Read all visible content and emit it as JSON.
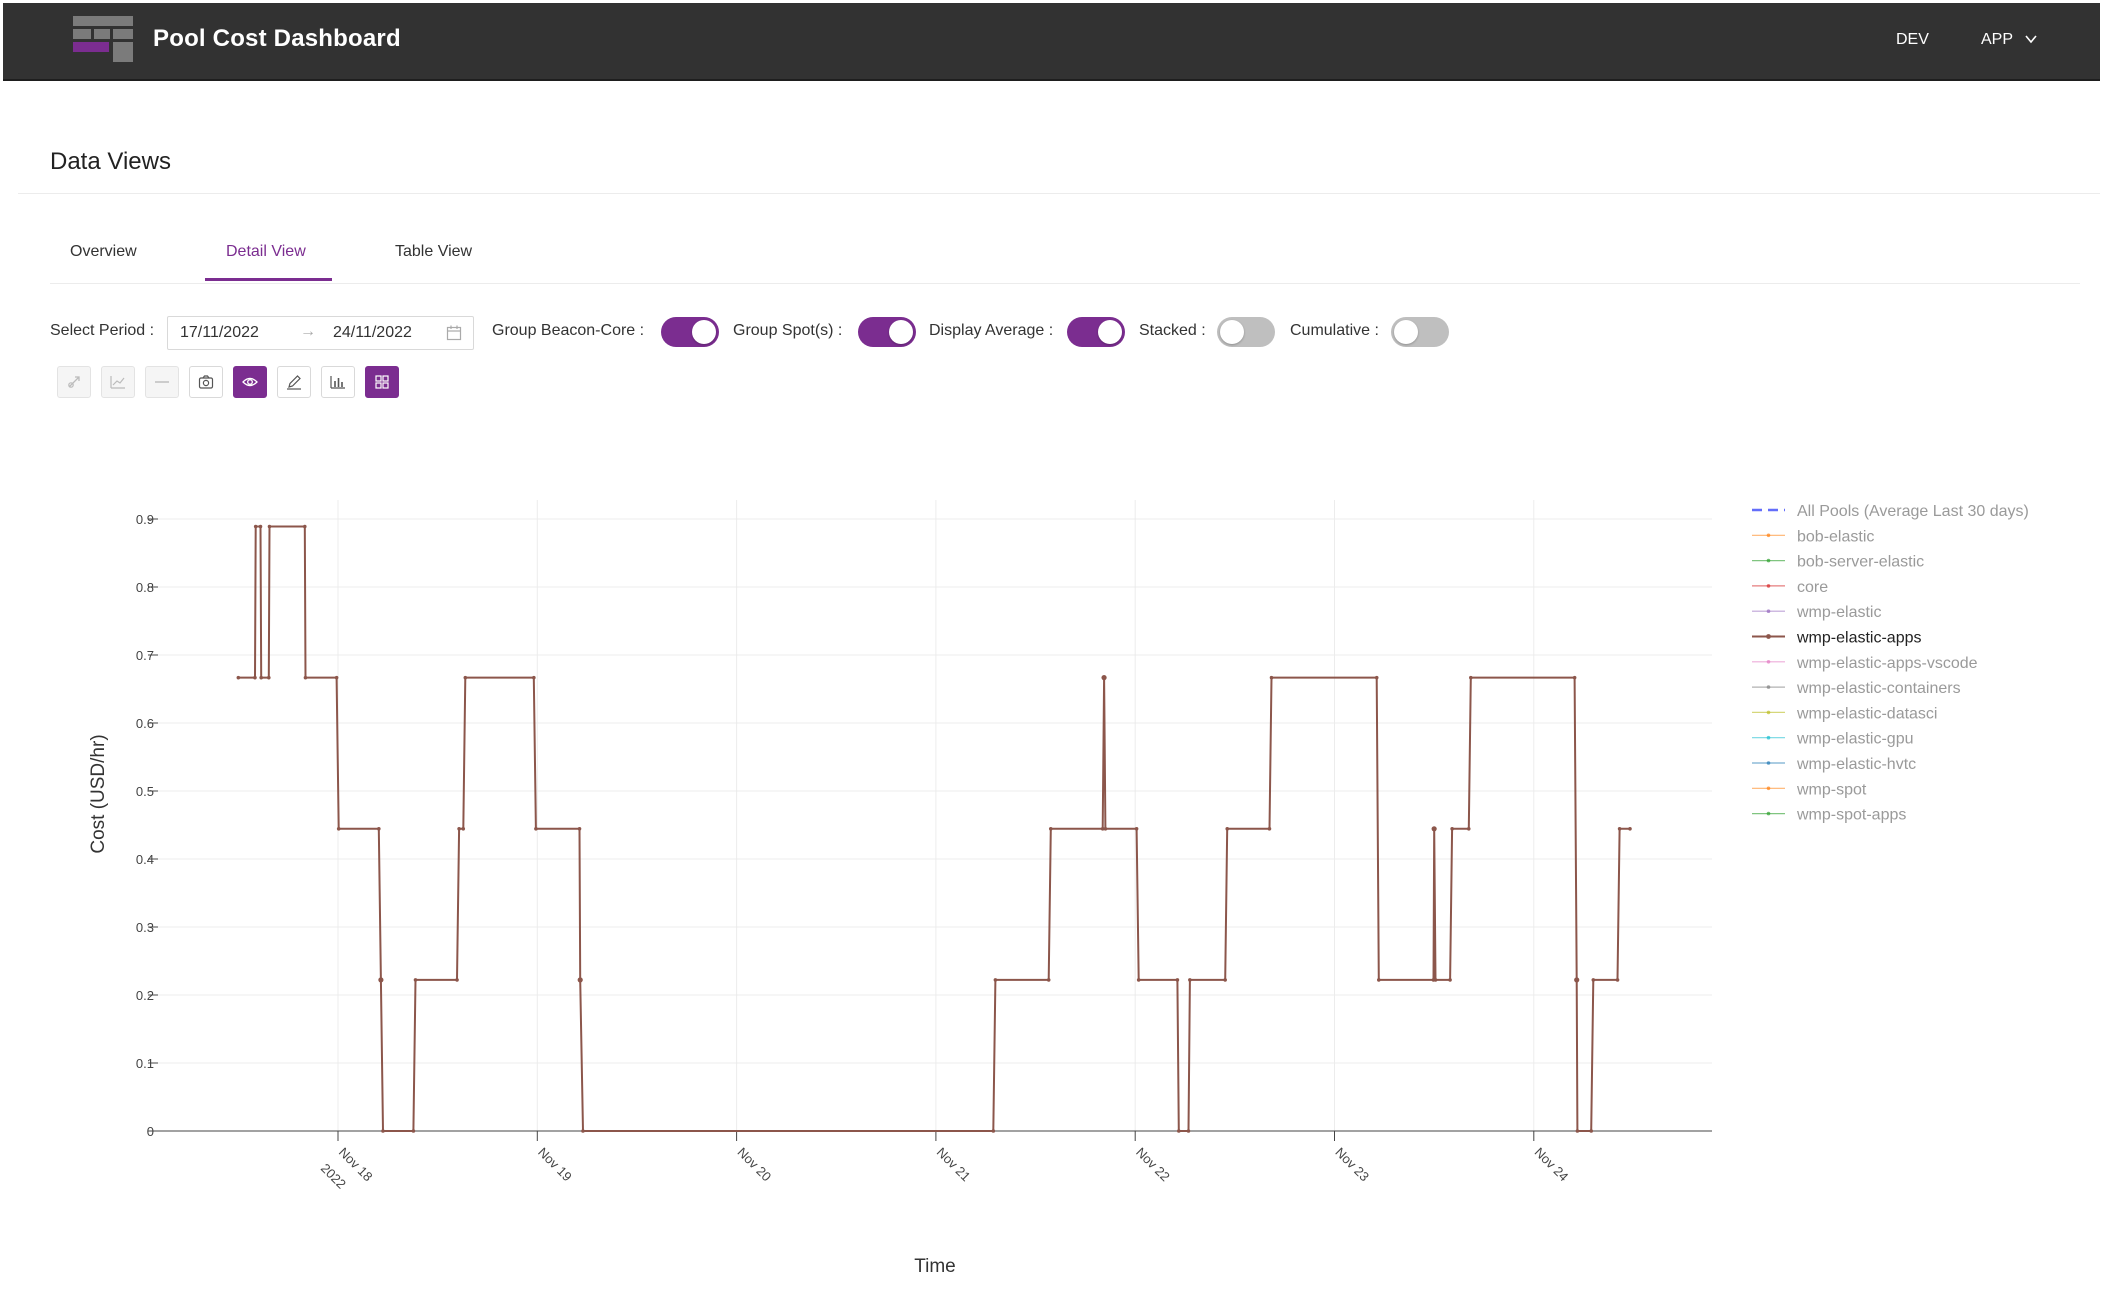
{
  "header": {
    "title": "Pool Cost Dashboard",
    "nav": [
      "DEV",
      "APP"
    ],
    "logo_colors": [
      "#7b7b7b",
      "#7b2d90"
    ]
  },
  "page": {
    "section_title": "Data Views",
    "tabs": [
      {
        "label": "Overview",
        "active": false
      },
      {
        "label": "Detail View",
        "active": true
      },
      {
        "label": "Table View",
        "active": false
      }
    ]
  },
  "controls": {
    "period_label": "Select Period",
    "date_start": "17/11/2022",
    "date_end": "24/11/2022",
    "toggles": [
      {
        "label": "Group Beacon-Core",
        "on": true
      },
      {
        "label": "Group Spot(s)",
        "on": true
      },
      {
        "label": "Display Average",
        "on": true
      },
      {
        "label": "Stacked",
        "on": false
      },
      {
        "label": "Cumulative",
        "on": false
      }
    ],
    "tools": [
      {
        "icon": "pan-icon",
        "state": "disabled"
      },
      {
        "icon": "line-chart-icon",
        "state": "disabled"
      },
      {
        "icon": "dash-line-icon",
        "state": "disabled"
      },
      {
        "icon": "camera-icon",
        "state": "normal"
      },
      {
        "icon": "eye-icon",
        "state": "active"
      },
      {
        "icon": "pencil-icon",
        "state": "normal"
      },
      {
        "icon": "bar-chart-icon",
        "state": "normal"
      },
      {
        "icon": "grid-icon",
        "state": "active"
      }
    ]
  },
  "colors": {
    "accent": "#7b2d90",
    "header_bg": "#323232",
    "series_line": "#8c564b"
  },
  "chart_data": {
    "type": "line",
    "ylabel": "Cost (USD/hr)",
    "xlabel": "Time",
    "ylim": [
      0,
      0.9
    ],
    "y_ticks": [
      {
        "v": 0,
        "label": "0"
      },
      {
        "v": 0.1,
        "label": "0.1"
      },
      {
        "v": 0.2,
        "label": "0.2"
      },
      {
        "v": 0.3,
        "label": "0.3"
      },
      {
        "v": 0.4,
        "label": "0.4"
      },
      {
        "v": 0.5,
        "label": "0.5"
      },
      {
        "v": 0.6,
        "label": "0.6"
      },
      {
        "v": 0.7,
        "label": "0.7"
      },
      {
        "v": 0.8,
        "label": "0.8"
      },
      {
        "v": 0.9,
        "label": "0.9"
      }
    ],
    "x_ticks": [
      {
        "v": "2022-11-18",
        "label": "Nov 18",
        "sub": "2022"
      },
      {
        "v": "2022-11-19",
        "label": "Nov 19",
        "sub": ""
      },
      {
        "v": "2022-11-20",
        "label": "Nov 20",
        "sub": ""
      },
      {
        "v": "2022-11-21",
        "label": "Nov 21",
        "sub": ""
      },
      {
        "v": "2022-11-22",
        "label": "Nov 22",
        "sub": ""
      },
      {
        "v": "2022-11-23",
        "label": "Nov 23",
        "sub": ""
      },
      {
        "v": "2022-11-24",
        "label": "Nov 24",
        "sub": ""
      }
    ],
    "grid": true,
    "legend_position": "right",
    "legend": [
      {
        "name": "All Pools (Average Last 30 days)",
        "color": "#636efa",
        "dash": true,
        "highlight": false
      },
      {
        "name": "bob-elastic",
        "color": "#ff7f0e",
        "dash": false,
        "highlight": false
      },
      {
        "name": "bob-server-elastic",
        "color": "#2ca02c",
        "dash": false,
        "highlight": false
      },
      {
        "name": "core",
        "color": "#d62728",
        "dash": false,
        "highlight": false
      },
      {
        "name": "wmp-elastic",
        "color": "#9467bd",
        "dash": false,
        "highlight": false
      },
      {
        "name": "wmp-elastic-apps",
        "color": "#8c564b",
        "dash": false,
        "highlight": true
      },
      {
        "name": "wmp-elastic-apps-vscode",
        "color": "#e377c2",
        "dash": false,
        "highlight": false
      },
      {
        "name": "wmp-elastic-containers",
        "color": "#7f7f7f",
        "dash": false,
        "highlight": false
      },
      {
        "name": "wmp-elastic-datasci",
        "color": "#bcbd22",
        "dash": false,
        "highlight": false
      },
      {
        "name": "wmp-elastic-gpu",
        "color": "#17becf",
        "dash": false,
        "highlight": false
      },
      {
        "name": "wmp-elastic-hvtc",
        "color": "#1f77b4",
        "dash": false,
        "highlight": false
      },
      {
        "name": "wmp-spot",
        "color": "#ff7f0e",
        "dash": false,
        "highlight": false
      },
      {
        "name": "wmp-spot-apps",
        "color": "#2ca02c",
        "dash": false,
        "highlight": false
      }
    ],
    "series": [
      {
        "name": "wmp-elastic-apps",
        "color": "#8c564b",
        "points": [
          [
            "2022-11-17T12:00",
            0.6667
          ],
          [
            "2022-11-17T14:00",
            0.6667
          ],
          [
            "2022-11-17T14:05",
            0.8889
          ],
          [
            "2022-11-17T14:40",
            0.8889
          ],
          [
            "2022-11-17T14:45",
            0.6667
          ],
          [
            "2022-11-17T15:40",
            0.6667
          ],
          [
            "2022-11-17T15:45",
            0.8889
          ],
          [
            "2022-11-17T20:00",
            0.8889
          ],
          [
            "2022-11-17T20:05",
            0.6667
          ],
          [
            "2022-11-17T23:50",
            0.6667
          ],
          [
            "2022-11-18T00:05",
            0.4444
          ],
          [
            "2022-11-18T04:55",
            0.4444
          ],
          [
            "2022-11-18T05:10",
            0.2222
          ],
          [
            "2022-11-18T05:25",
            0
          ],
          [
            "2022-11-18T09:05",
            0
          ],
          [
            "2022-11-18T09:20",
            0.2222
          ],
          [
            "2022-11-18T14:20",
            0.2222
          ],
          [
            "2022-11-18T14:35",
            0.4444
          ],
          [
            "2022-11-18T15:05",
            0.4444
          ],
          [
            "2022-11-18T15:20",
            0.6667
          ],
          [
            "2022-11-18T23:35",
            0.6667
          ],
          [
            "2022-11-18T23:50",
            0.4444
          ],
          [
            "2022-11-19T05:05",
            0.4444
          ],
          [
            "2022-11-19T05:10",
            0.2222
          ],
          [
            "2022-11-19T05:30",
            0
          ],
          [
            "2022-11-21T06:55",
            0
          ],
          [
            "2022-11-21T07:10",
            0.2222
          ],
          [
            "2022-11-21T13:35",
            0.2222
          ],
          [
            "2022-11-21T13:50",
            0.4444
          ],
          [
            "2022-11-21T20:05",
            0.4444
          ],
          [
            "2022-11-21T20:15",
            0.6667
          ],
          [
            "2022-11-21T20:25",
            0.4444
          ],
          [
            "2022-11-22T00:10",
            0.4444
          ],
          [
            "2022-11-22T00:25",
            0.2222
          ],
          [
            "2022-11-22T05:05",
            0.2222
          ],
          [
            "2022-11-22T05:15",
            0
          ],
          [
            "2022-11-22T06:25",
            0
          ],
          [
            "2022-11-22T06:35",
            0.2222
          ],
          [
            "2022-11-22T10:50",
            0.2222
          ],
          [
            "2022-11-22T11:05",
            0.4444
          ],
          [
            "2022-11-22T16:10",
            0.4444
          ],
          [
            "2022-11-22T16:25",
            0.6667
          ],
          [
            "2022-11-23T05:05",
            0.6667
          ],
          [
            "2022-11-23T05:20",
            0.2222
          ],
          [
            "2022-11-23T11:55",
            0.2222
          ],
          [
            "2022-11-23T12:00",
            0.4444
          ],
          [
            "2022-11-23T12:10",
            0.2222
          ],
          [
            "2022-11-23T13:55",
            0.2222
          ],
          [
            "2022-11-23T14:10",
            0.4444
          ],
          [
            "2022-11-23T16:10",
            0.4444
          ],
          [
            "2022-11-23T16:25",
            0.6667
          ],
          [
            "2022-11-24T04:55",
            0.6667
          ],
          [
            "2022-11-24T05:10",
            0.2222
          ],
          [
            "2022-11-24T05:15",
            0
          ],
          [
            "2022-11-24T06:55",
            0
          ],
          [
            "2022-11-24T07:10",
            0.2222
          ],
          [
            "2022-11-24T10:05",
            0.2222
          ],
          [
            "2022-11-24T10:20",
            0.4444
          ],
          [
            "2022-11-24T11:35",
            0.4444
          ]
        ],
        "markers": [
          [
            "2022-11-18T05:10",
            0.2222
          ],
          [
            "2022-11-19T05:10",
            0.2222
          ],
          [
            "2022-11-21T20:15",
            0.6667
          ],
          [
            "2022-11-23T12:00",
            0.4444
          ],
          [
            "2022-11-24T05:10",
            0.2222
          ]
        ]
      }
    ]
  }
}
